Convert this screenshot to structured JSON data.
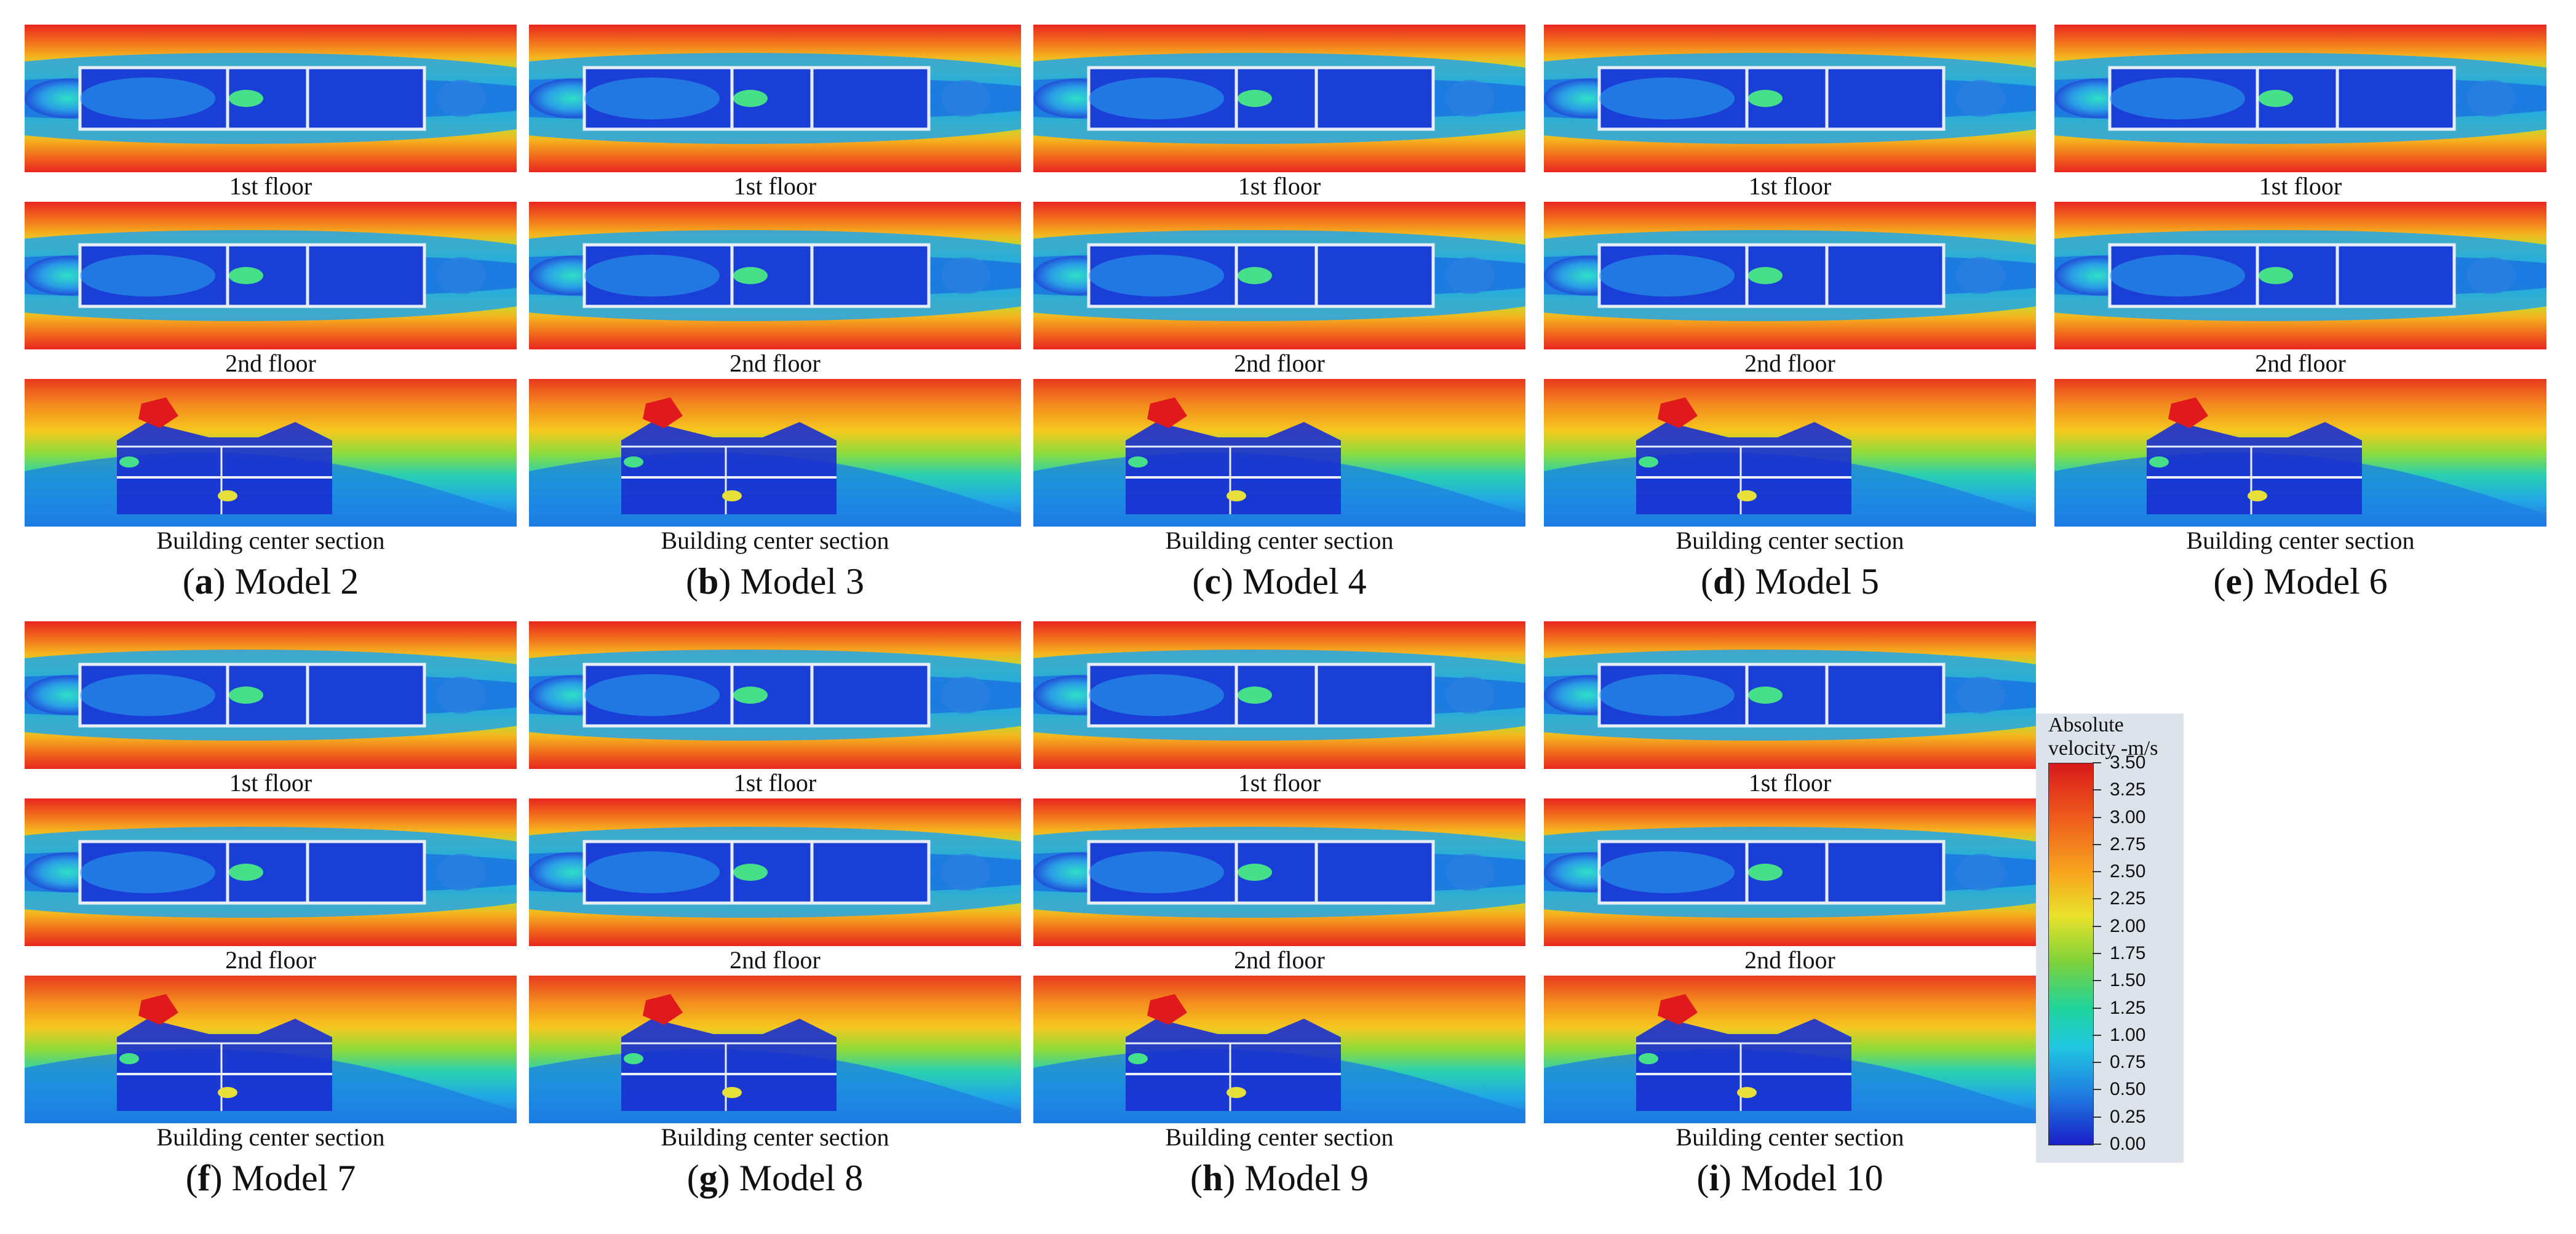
{
  "models": [
    {
      "letter": "a",
      "name": "Model 2",
      "floor1_label": "1st floor",
      "floor2_label": "2nd floor",
      "section_label": "Building center section"
    },
    {
      "letter": "b",
      "name": "Model 3",
      "floor1_label": "1st floor",
      "floor2_label": "2nd floor",
      "section_label": "Building center section"
    },
    {
      "letter": "c",
      "name": "Model 4",
      "floor1_label": "1st floor",
      "floor2_label": "2nd floor",
      "section_label": "Building center section"
    },
    {
      "letter": "d",
      "name": "Model 5",
      "floor1_label": "1st floor",
      "floor2_label": "2nd floor",
      "section_label": "Building center section"
    },
    {
      "letter": "e",
      "name": "Model 6",
      "floor1_label": "1st floor",
      "floor2_label": "2nd floor",
      "section_label": "Building center section"
    },
    {
      "letter": "f",
      "name": "Model 7",
      "floor1_label": "1st floor",
      "floor2_label": "2nd floor",
      "section_label": "Building center section"
    },
    {
      "letter": "g",
      "name": "Model 8",
      "floor1_label": "1st floor",
      "floor2_label": "2nd floor",
      "section_label": "Building center section"
    },
    {
      "letter": "h",
      "name": "Model 9",
      "floor1_label": "1st floor",
      "floor2_label": "2nd floor",
      "section_label": "Building center section"
    },
    {
      "letter": "i",
      "name": "Model 10",
      "floor1_label": "1st floor",
      "floor2_label": "2nd floor",
      "section_label": "Building center section"
    }
  ],
  "legend": {
    "title_line1": "Absolute",
    "title_line2": "velocity -m/s",
    "ticks": [
      "3.50",
      "3.25",
      "3.00",
      "2.75",
      "2.50",
      "2.25",
      "2.00",
      "1.75",
      "1.50",
      "1.25",
      "1.00",
      "0.75",
      "0.50",
      "0.25",
      "0.00"
    ],
    "colors": {
      "max": "#d7191c",
      "mid": "#7ed23a",
      "min": "#1a1fc8"
    }
  }
}
